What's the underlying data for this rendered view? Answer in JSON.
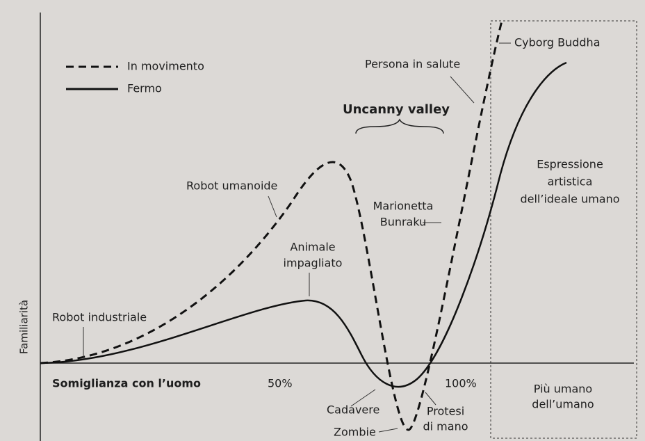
{
  "legend": {
    "moving": "In movimento",
    "still": "Fermo"
  },
  "title": "Uncanny valley",
  "axes": {
    "y_label": "Familiarità",
    "x_label": "Somiglianza con l’uomo",
    "x_mid": "50%",
    "x_full": "100%"
  },
  "labels": {
    "healthy": "Persona in salute",
    "cyborg": "Cyborg Buddha",
    "humanoid": "Robot umanoide",
    "art": [
      "Espressione",
      "artistica",
      "dell’ideale umano"
    ],
    "bunraku": [
      "Marionetta",
      "Bunraku"
    ],
    "stuffed": [
      "Animale",
      "impagliato"
    ],
    "industrial": "Robot industriale",
    "beyond": [
      "Più umano",
      "dell’umano"
    ],
    "corpse": "Cadavere",
    "zombie": "Zombie",
    "prosthesis": [
      "Protesi",
      "di mano"
    ]
  }
}
